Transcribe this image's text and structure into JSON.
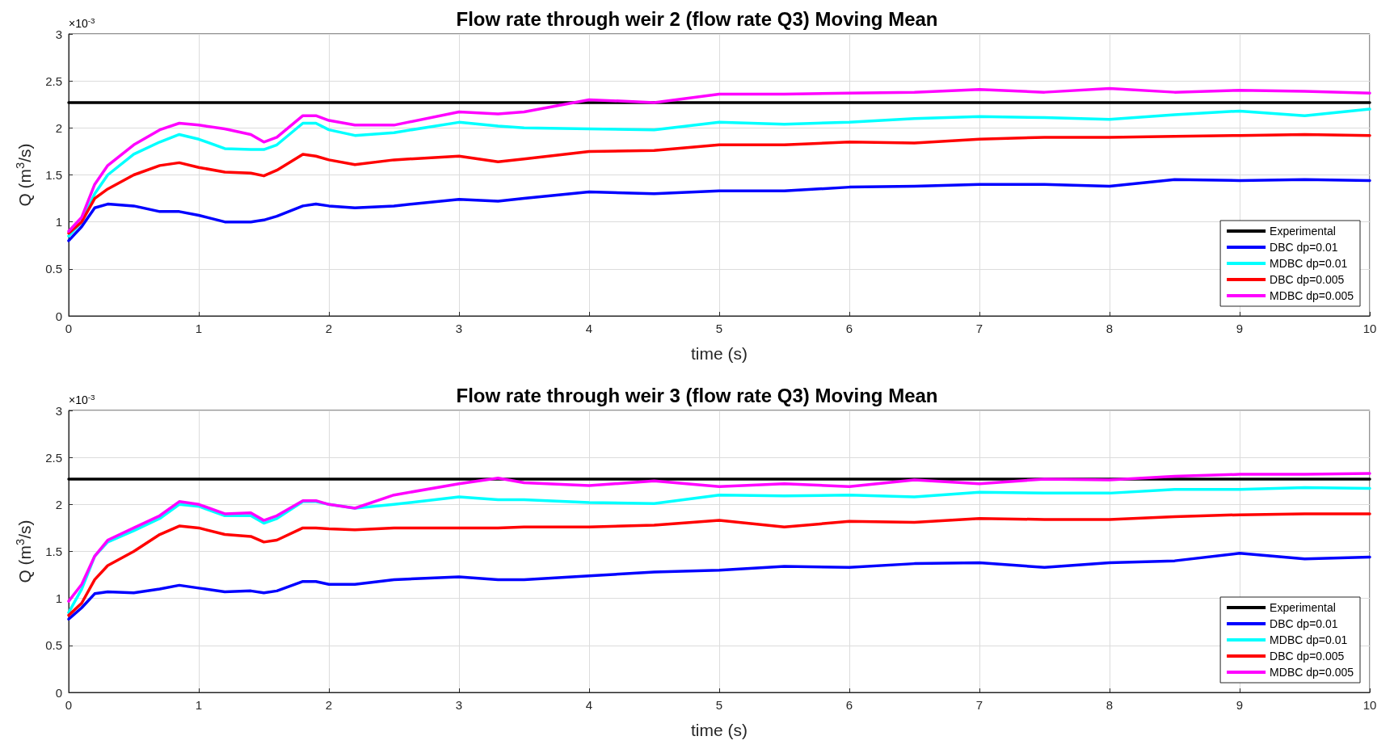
{
  "chart_data": [
    {
      "type": "line",
      "title": "Flow rate through weir 2 (flow rate Q3) Moving Mean",
      "xlabel": "time (s)",
      "ylabel": "Q (m$^{3}$/s)",
      "annotations": [
        "×10$^{-3}$"
      ],
      "xlim": [
        0,
        10
      ],
      "ylim": [
        0,
        3
      ],
      "xticks": [
        0,
        1,
        2,
        3,
        4,
        5,
        6,
        7,
        8,
        9,
        10
      ],
      "yticks": [
        0,
        0.5,
        1,
        1.5,
        2,
        2.5,
        3
      ],
      "grid": true,
      "legend": "bottom right",
      "marker": "none",
      "line_style": "solid",
      "x": [
        0,
        0.1,
        0.2,
        0.3,
        0.5,
        0.7,
        0.85,
        1,
        1.2,
        1.4,
        1.5,
        1.6,
        1.8,
        1.9,
        2,
        2.2,
        2.5,
        3,
        3.3,
        3.5,
        4,
        4.5,
        5,
        5.5,
        6,
        6.5,
        7,
        7.5,
        8,
        8.5,
        9,
        9.5,
        10
      ],
      "series": [
        {
          "name": "Experimental",
          "color": "#000000",
          "values": [
            2.27,
            2.27,
            2.27,
            2.27,
            2.27,
            2.27,
            2.27,
            2.27,
            2.27,
            2.27,
            2.27,
            2.27,
            2.27,
            2.27,
            2.27,
            2.27,
            2.27,
            2.27,
            2.27,
            2.27,
            2.27,
            2.27,
            2.27,
            2.27,
            2.27,
            2.27,
            2.27,
            2.27,
            2.27,
            2.27,
            2.27,
            2.27,
            2.27
          ]
        },
        {
          "name": "DBC dp=0.01",
          "color": "#0000ff",
          "values": [
            0.8,
            0.95,
            1.15,
            1.19,
            1.17,
            1.11,
            1.11,
            1.07,
            1.0,
            1.0,
            1.02,
            1.06,
            1.17,
            1.19,
            1.17,
            1.15,
            1.17,
            1.24,
            1.22,
            1.25,
            1.32,
            1.3,
            1.33,
            1.33,
            1.37,
            1.38,
            1.4,
            1.4,
            1.38,
            1.45,
            1.44,
            1.45,
            1.44
          ]
        },
        {
          "name": "MDBC dp=0.01",
          "color": "#00ffff",
          "values": [
            0.85,
            1.0,
            1.3,
            1.5,
            1.72,
            1.85,
            1.93,
            1.88,
            1.78,
            1.77,
            1.77,
            1.82,
            2.05,
            2.05,
            1.98,
            1.92,
            1.95,
            2.06,
            2.02,
            2.0,
            1.99,
            1.98,
            2.06,
            2.04,
            2.06,
            2.1,
            2.12,
            2.11,
            2.09,
            2.14,
            2.18,
            2.13,
            2.2
          ]
        },
        {
          "name": "DBC dp=0.005",
          "color": "#ff0000",
          "values": [
            0.88,
            1.0,
            1.25,
            1.35,
            1.5,
            1.6,
            1.63,
            1.58,
            1.53,
            1.52,
            1.49,
            1.55,
            1.72,
            1.7,
            1.66,
            1.61,
            1.66,
            1.7,
            1.64,
            1.67,
            1.75,
            1.76,
            1.82,
            1.82,
            1.85,
            1.84,
            1.88,
            1.9,
            1.9,
            1.91,
            1.92,
            1.93,
            1.92
          ]
        },
        {
          "name": "MDBC dp=0.005",
          "color": "#ff00ff",
          "values": [
            0.9,
            1.05,
            1.4,
            1.6,
            1.82,
            1.98,
            2.05,
            2.03,
            1.99,
            1.93,
            1.85,
            1.9,
            2.13,
            2.13,
            2.08,
            2.03,
            2.03,
            2.17,
            2.15,
            2.17,
            2.3,
            2.27,
            2.36,
            2.36,
            2.37,
            2.38,
            2.41,
            2.38,
            2.42,
            2.38,
            2.4,
            2.39,
            2.37
          ]
        }
      ]
    },
    {
      "type": "line",
      "title": "Flow rate through weir 3 (flow rate Q3) Moving Mean",
      "xlabel": "time (s)",
      "ylabel": "Q (m$^{3}$/s)",
      "annotations": [
        "×10$^{-3}$"
      ],
      "xlim": [
        0,
        10
      ],
      "ylim": [
        0,
        3
      ],
      "xticks": [
        0,
        1,
        2,
        3,
        4,
        5,
        6,
        7,
        8,
        9,
        10
      ],
      "yticks": [
        0,
        0.5,
        1,
        1.5,
        2,
        2.5,
        3
      ],
      "grid": true,
      "legend": "bottom right",
      "marker": "none",
      "line_style": "solid",
      "x": [
        0,
        0.1,
        0.2,
        0.3,
        0.5,
        0.7,
        0.85,
        1,
        1.2,
        1.4,
        1.5,
        1.6,
        1.8,
        1.9,
        2,
        2.2,
        2.5,
        3,
        3.3,
        3.5,
        4,
        4.5,
        5,
        5.5,
        6,
        6.5,
        7,
        7.5,
        8,
        8.5,
        9,
        9.5,
        10
      ],
      "series": [
        {
          "name": "Experimental",
          "color": "#000000",
          "values": [
            2.27,
            2.27,
            2.27,
            2.27,
            2.27,
            2.27,
            2.27,
            2.27,
            2.27,
            2.27,
            2.27,
            2.27,
            2.27,
            2.27,
            2.27,
            2.27,
            2.27,
            2.27,
            2.27,
            2.27,
            2.27,
            2.27,
            2.27,
            2.27,
            2.27,
            2.27,
            2.27,
            2.27,
            2.27,
            2.27,
            2.27,
            2.27,
            2.27
          ]
        },
        {
          "name": "DBC dp=0.01",
          "color": "#0000ff",
          "values": [
            0.78,
            0.9,
            1.05,
            1.07,
            1.06,
            1.1,
            1.14,
            1.11,
            1.07,
            1.08,
            1.06,
            1.08,
            1.18,
            1.18,
            1.15,
            1.15,
            1.2,
            1.23,
            1.2,
            1.2,
            1.24,
            1.28,
            1.3,
            1.34,
            1.33,
            1.37,
            1.38,
            1.33,
            1.38,
            1.4,
            1.48,
            1.42,
            1.44
          ]
        },
        {
          "name": "MDBC dp=0.01",
          "color": "#00ffff",
          "values": [
            0.85,
            1.1,
            1.45,
            1.6,
            1.72,
            1.85,
            2.0,
            1.98,
            1.88,
            1.88,
            1.8,
            1.85,
            2.03,
            2.03,
            2.0,
            1.96,
            2.0,
            2.08,
            2.05,
            2.05,
            2.02,
            2.01,
            2.1,
            2.09,
            2.1,
            2.08,
            2.13,
            2.12,
            2.12,
            2.16,
            2.16,
            2.18,
            2.17
          ]
        },
        {
          "name": "DBC dp=0.005",
          "color": "#ff0000",
          "values": [
            0.82,
            0.95,
            1.2,
            1.35,
            1.5,
            1.68,
            1.77,
            1.75,
            1.68,
            1.66,
            1.6,
            1.62,
            1.75,
            1.75,
            1.74,
            1.73,
            1.75,
            1.75,
            1.75,
            1.76,
            1.76,
            1.78,
            1.83,
            1.76,
            1.82,
            1.81,
            1.85,
            1.84,
            1.84,
            1.87,
            1.89,
            1.9,
            1.9
          ]
        },
        {
          "name": "MDBC dp=0.005",
          "color": "#ff00ff",
          "values": [
            0.97,
            1.15,
            1.45,
            1.62,
            1.75,
            1.88,
            2.03,
            2.0,
            1.9,
            1.91,
            1.83,
            1.88,
            2.04,
            2.04,
            2.0,
            1.96,
            2.1,
            2.22,
            2.28,
            2.23,
            2.2,
            2.25,
            2.19,
            2.22,
            2.19,
            2.26,
            2.22,
            2.27,
            2.26,
            2.3,
            2.32,
            2.32,
            2.33
          ]
        }
      ]
    }
  ]
}
